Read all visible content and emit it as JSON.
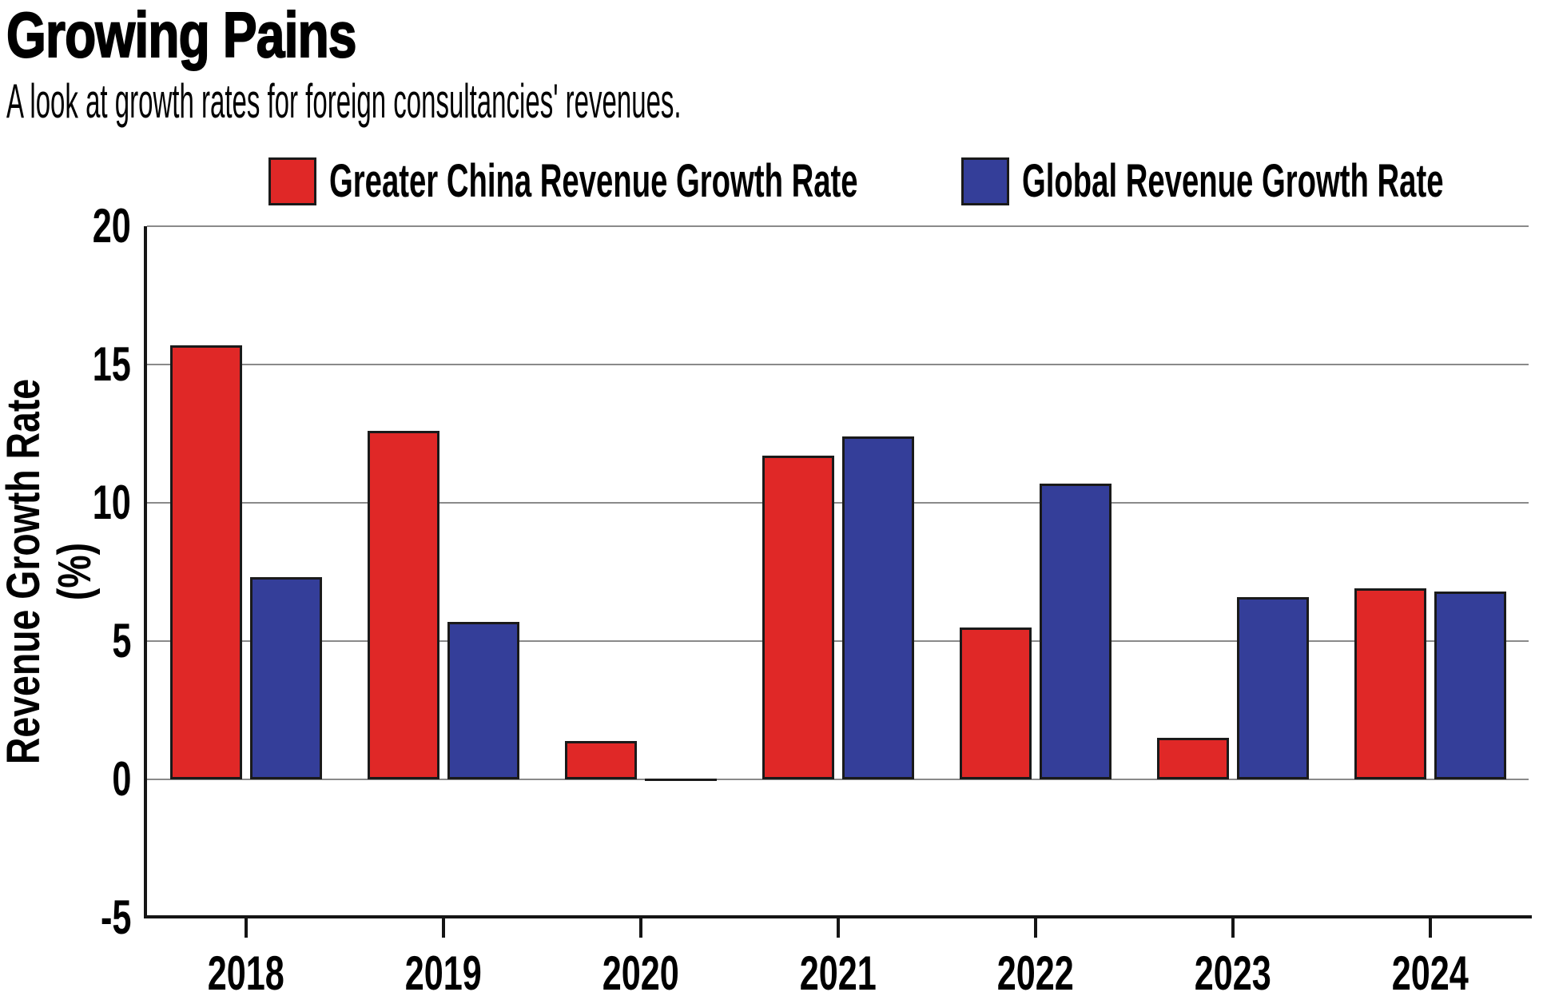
{
  "header": {
    "title": "Growing Pains",
    "subtitle": "A look at growth rates for foreign consultancies' revenues."
  },
  "legend": {
    "items": [
      {
        "label": "Greater China Revenue Growth Rate",
        "color": "#e02827"
      },
      {
        "label": "Global Revenue Growth Rate",
        "color": "#343e99"
      }
    ]
  },
  "chart_data": {
    "type": "bar",
    "title": "Growing Pains",
    "subtitle": "A look at growth rates for foreign consultancies' revenues.",
    "categories": [
      "2018",
      "2019",
      "2020",
      "2021",
      "2022",
      "2023",
      "2024"
    ],
    "series": [
      {
        "name": "Greater China Revenue Growth Rate",
        "color": "#e02827",
        "values": [
          15.7,
          12.6,
          1.4,
          11.7,
          5.5,
          1.5,
          6.9
        ]
      },
      {
        "name": "Global Revenue Growth Rate",
        "color": "#343e99",
        "values": [
          7.3,
          5.7,
          0.0,
          12.4,
          10.7,
          6.6,
          6.8
        ]
      }
    ],
    "xlabel": "",
    "ylabel": "Revenue Growth Rate (%)",
    "ylim": [
      -5,
      20
    ],
    "yticks": [
      20,
      15,
      10,
      5,
      0,
      -5
    ],
    "grid": true,
    "legend_position": "top",
    "gridline_color": "#8a8a8a",
    "axis_color": "#151515",
    "bar_border_color": "#1a1a1a"
  }
}
